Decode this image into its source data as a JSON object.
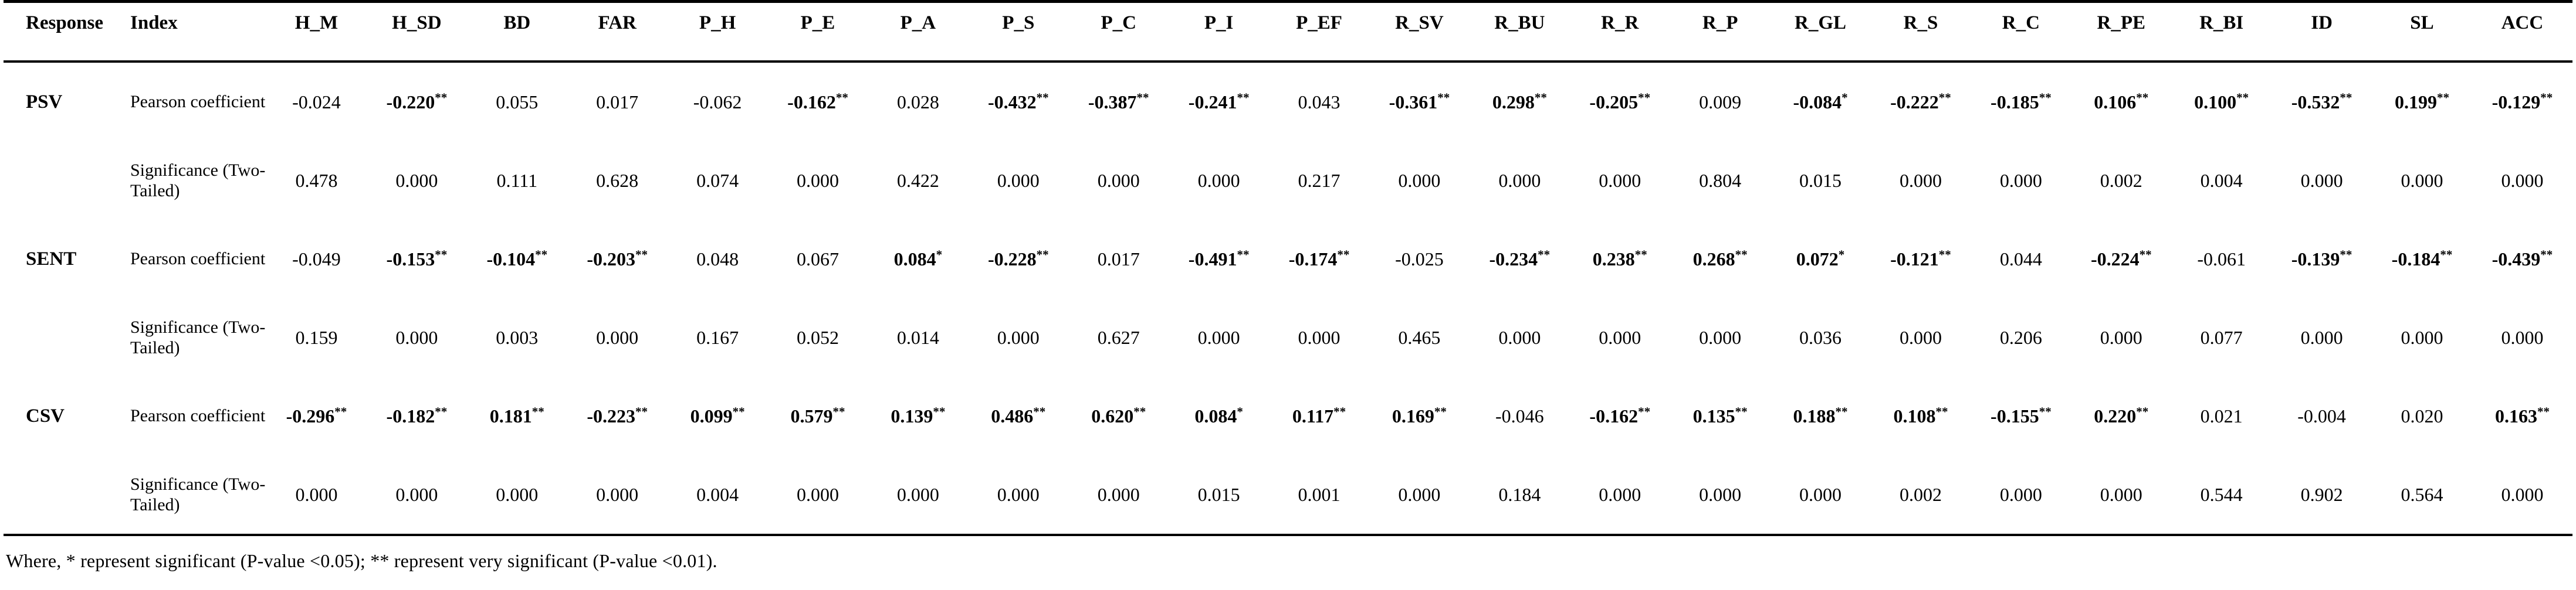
{
  "table": {
    "columns": [
      "Response",
      "Index",
      "H_M",
      "H_SD",
      "BD",
      "FAR",
      "P_H",
      "P_E",
      "P_A",
      "P_S",
      "P_C",
      "P_I",
      "P_EF",
      "R_SV",
      "R_BU",
      "R_R",
      "R_P",
      "R_GL",
      "R_S",
      "R_C",
      "R_PE",
      "R_BI",
      "ID",
      "SL",
      "ACC"
    ],
    "index_labels": {
      "pearson": "Pearson coefficient",
      "significance": "Significance (Two-Tailed)"
    },
    "row_groups": [
      {
        "response": "PSV",
        "pearson": [
          "-0.024",
          "-0.220**",
          "0.055",
          "0.017",
          "-0.062",
          "-0.162**",
          "0.028",
          "-0.432**",
          "-0.387**",
          "-0.241**",
          "0.043",
          "-0.361**",
          "0.298**",
          "-0.205**",
          "0.009",
          "-0.084*",
          "-0.222**",
          "-0.185**",
          "0.106**",
          "0.100**",
          "-0.532**",
          "0.199**",
          "-0.129**"
        ],
        "significance": [
          "0.478",
          "0.000",
          "0.111",
          "0.628",
          "0.074",
          "0.000",
          "0.422",
          "0.000",
          "0.000",
          "0.000",
          "0.217",
          "0.000",
          "0.000",
          "0.000",
          "0.804",
          "0.015",
          "0.000",
          "0.000",
          "0.002",
          "0.004",
          "0.000",
          "0.000",
          "0.000"
        ]
      },
      {
        "response": "SENT",
        "pearson": [
          "-0.049",
          "-0.153**",
          "-0.104**",
          "-0.203**",
          "0.048",
          "0.067",
          "0.084*",
          "-0.228**",
          "0.017",
          "-0.491**",
          "-0.174**",
          "-0.025",
          "-0.234**",
          "0.238**",
          "0.268**",
          "0.072*",
          "-0.121**",
          "0.044",
          "-0.224**",
          "-0.061",
          "-0.139**",
          "-0.184**",
          "-0.439**"
        ],
        "significance": [
          "0.159",
          "0.000",
          "0.003",
          "0.000",
          "0.167",
          "0.052",
          "0.014",
          "0.000",
          "0.627",
          "0.000",
          "0.000",
          "0.465",
          "0.000",
          "0.000",
          "0.000",
          "0.036",
          "0.000",
          "0.206",
          "0.000",
          "0.077",
          "0.000",
          "0.000",
          "0.000"
        ]
      },
      {
        "response": "CSV",
        "pearson": [
          "-0.296**",
          "-0.182**",
          "0.181**",
          "-0.223**",
          "0.099**",
          "0.579**",
          "0.139**",
          "0.486**",
          "0.620**",
          "0.084*",
          "0.117**",
          "0.169**",
          "-0.046",
          "-0.162**",
          "0.135**",
          "0.188**",
          "0.108**",
          "-0.155**",
          "0.220**",
          "0.021",
          "-0.004",
          "0.020",
          "0.163**"
        ],
        "significance": [
          "0.000",
          "0.000",
          "0.000",
          "0.000",
          "0.004",
          "0.000",
          "0.000",
          "0.000",
          "0.000",
          "0.015",
          "0.001",
          "0.000",
          "0.184",
          "0.000",
          "0.000",
          "0.000",
          "0.002",
          "0.000",
          "0.000",
          "0.544",
          "0.902",
          "0.564",
          "0.000"
        ]
      }
    ]
  },
  "footnote": "Where, * represent significant (P-value <0.05); ** represent very significant (P-value <0.01)."
}
